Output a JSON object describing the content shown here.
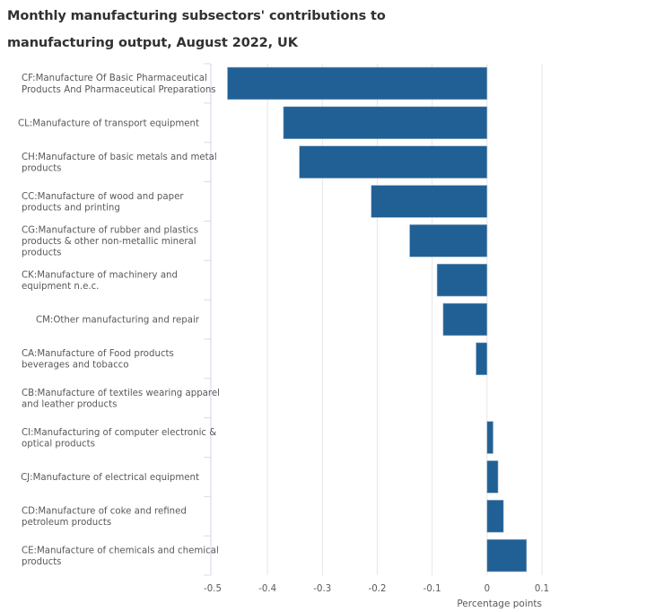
{
  "chart_data": {
    "type": "bar",
    "orientation": "horizontal",
    "title": "Monthly manufacturing subsectors' contributions to manufacturing output, August 2022, UK",
    "xlabel": "Percentage points",
    "ylabel": "",
    "xlim": [
      -0.5,
      0.1
    ],
    "xticks": [
      -0.5,
      -0.4,
      -0.3,
      -0.2,
      -0.1,
      0,
      0.1
    ],
    "xtick_labels": [
      "-0.5",
      "-0.4",
      "-0.3",
      "-0.2",
      "-0.1",
      "0",
      "0.1"
    ],
    "grid": true,
    "legend": "none",
    "bar_color": "#206095",
    "categories": [
      [
        "CF:Manufacture Of Basic Pharmaceutical",
        "Products And Pharmaceutical Preparations"
      ],
      [
        "CL:Manufacture of transport equipment"
      ],
      [
        "CH:Manufacture of basic metals and metal",
        "products"
      ],
      [
        "CC:Manufacture of wood and paper",
        "products and printing"
      ],
      [
        "CG:Manufacture of rubber and plastics",
        "products & other non-metallic mineral",
        "products"
      ],
      [
        "CK:Manufacture of machinery and",
        "equipment n.e.c."
      ],
      [
        "CM:Other manufacturing and repair"
      ],
      [
        "CA:Manufacture of Food products",
        "beverages and tobacco"
      ],
      [
        "CB:Manufacture of textiles wearing apparel",
        "and leather products"
      ],
      [
        "CI:Manufacturing of computer electronic &",
        "optical products"
      ],
      [
        "CJ:Manufacture of electrical equipment"
      ],
      [
        "CD:Manufacture of coke and refined",
        "petroleum products"
      ],
      [
        "CE:Manufacture of chemicals and chemical",
        "products"
      ]
    ],
    "values": [
      -0.473,
      -0.371,
      -0.342,
      -0.211,
      -0.141,
      -0.091,
      -0.08,
      -0.02,
      0.0,
      0.011,
      0.02,
      0.03,
      0.072
    ]
  }
}
